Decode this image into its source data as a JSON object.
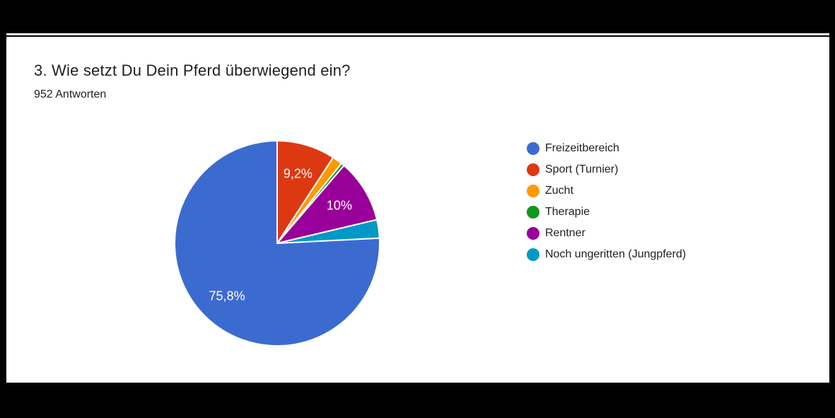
{
  "window": {
    "background_color": "#000000",
    "card_background_color": "#ffffff"
  },
  "header": {
    "title": "3. Wie setzt Du Dein Pferd überwiegend ein?",
    "subtitle": "952 Antworten"
  },
  "chart_data": {
    "type": "pie",
    "title": "3. Wie setzt Du Dein Pferd überwiegend ein?",
    "subtitle": "952 Antworten",
    "total_responses": 952,
    "legend_position": "right",
    "value_unit": "percent",
    "number_format": "German decimal comma",
    "slices": [
      {
        "name": "Freizeitbereich",
        "percent": 75.8,
        "displayed_label": "75,8%",
        "color": "#3C6BD0"
      },
      {
        "name": "Sport (Turnier)",
        "percent": 9.2,
        "displayed_label": "9,2%",
        "color": "#DC3912"
      },
      {
        "name": "Zucht",
        "percent": 1.6,
        "displayed_label": null,
        "color": "#FF9900"
      },
      {
        "name": "Therapie",
        "percent": 0.5,
        "displayed_label": null,
        "color": "#109618"
      },
      {
        "name": "Rentner",
        "percent": 10,
        "displayed_label": "10%",
        "color": "#990099"
      },
      {
        "name": "Noch ungeritten (Jungpferd)",
        "percent": 2.9,
        "displayed_label": null,
        "color": "#0099C6"
      }
    ],
    "draw_order_clockwise_from_top": [
      1,
      2,
      3,
      4,
      5,
      0
    ],
    "slice_label_color": "#ffffff"
  }
}
